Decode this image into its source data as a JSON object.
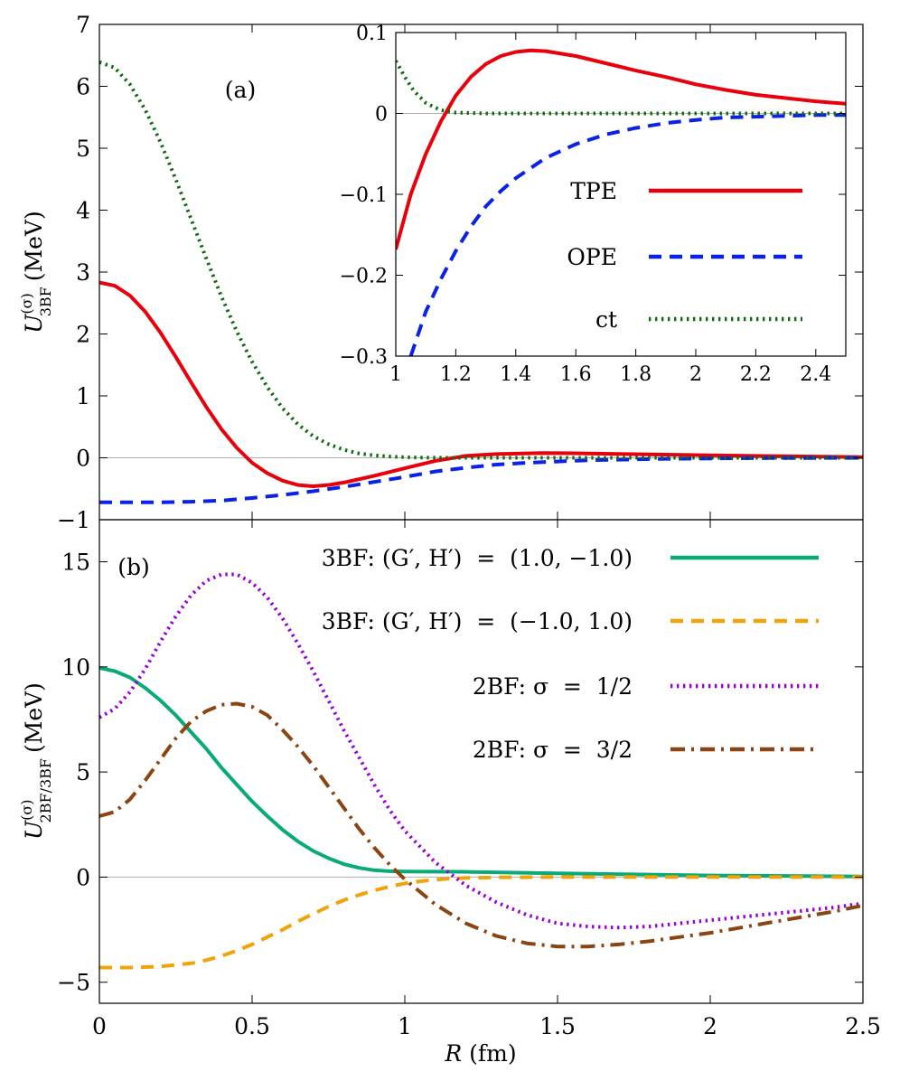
{
  "chart_data": [
    {
      "id": "panel-a",
      "type": "line",
      "panel_label": "(a)",
      "ylabel_main": "U",
      "ylabel_sup": "(σ)",
      "ylabel_sub": "3BF",
      "ylabel_unit": "(MeV)",
      "xlim": [
        0,
        2.5
      ],
      "ylim": [
        -1,
        7
      ],
      "yticks": [
        -1,
        0,
        1,
        2,
        3,
        4,
        5,
        6,
        7
      ],
      "ytick_labels": [
        "−1",
        "0",
        "1",
        "2",
        "3",
        "4",
        "5",
        "6",
        "7"
      ],
      "series": [
        {
          "name": "TPE",
          "color": "#e8000b",
          "style": "solid",
          "x": [
            0,
            0.05,
            0.1,
            0.15,
            0.2,
            0.25,
            0.3,
            0.35,
            0.4,
            0.45,
            0.5,
            0.55,
            0.6,
            0.65,
            0.7,
            0.75,
            0.8,
            0.9,
            1.0,
            1.1,
            1.2,
            1.3,
            1.45,
            1.6,
            1.8,
            2.0,
            2.2,
            2.5
          ],
          "y": [
            2.83,
            2.78,
            2.62,
            2.36,
            2.02,
            1.63,
            1.22,
            0.82,
            0.46,
            0.16,
            -0.08,
            -0.25,
            -0.37,
            -0.44,
            -0.46,
            -0.44,
            -0.4,
            -0.29,
            -0.17,
            -0.05,
            0.03,
            0.06,
            0.077,
            0.07,
            0.055,
            0.04,
            0.028,
            0.012
          ]
        },
        {
          "name": "OPE",
          "color": "#0a22e8",
          "style": "dashed",
          "x": [
            0,
            0.1,
            0.2,
            0.3,
            0.4,
            0.5,
            0.6,
            0.7,
            0.8,
            0.9,
            1.0,
            1.1,
            1.2,
            1.3,
            1.4,
            1.5,
            1.6,
            1.8,
            2.0,
            2.2,
            2.5
          ],
          "y": [
            -0.72,
            -0.72,
            -0.72,
            -0.71,
            -0.69,
            -0.65,
            -0.6,
            -0.54,
            -0.47,
            -0.39,
            -0.31,
            -0.22,
            -0.16,
            -0.11,
            -0.08,
            -0.06,
            -0.04,
            -0.02,
            -0.01,
            -0.005,
            -0.002
          ]
        },
        {
          "name": "ct",
          "color": "#0f6b0f",
          "style": "dotted",
          "x": [
            0,
            0.05,
            0.1,
            0.15,
            0.2,
            0.25,
            0.3,
            0.35,
            0.4,
            0.45,
            0.5,
            0.55,
            0.6,
            0.65,
            0.7,
            0.75,
            0.8,
            0.85,
            0.9,
            0.95,
            1.0,
            1.05,
            1.1,
            1.15,
            1.2,
            1.5,
            2.0,
            2.5
          ],
          "y": [
            6.39,
            6.3,
            6.03,
            5.62,
            5.1,
            4.5,
            3.86,
            3.22,
            2.6,
            2.04,
            1.55,
            1.14,
            0.8,
            0.54,
            0.35,
            0.22,
            0.13,
            0.07,
            0.04,
            0.02,
            0.01,
            0.003,
            0.001,
            0,
            0,
            0,
            0,
            0
          ]
        }
      ]
    },
    {
      "id": "inset",
      "type": "line",
      "xlim": [
        1,
        2.5
      ],
      "ylim": [
        -0.3,
        0.1
      ],
      "xticks": [
        1,
        1.2,
        1.4,
        1.6,
        1.8,
        2,
        2.2,
        2.4
      ],
      "xtick_labels": [
        "1",
        "1.2",
        "1.4",
        "1.6",
        "1.8",
        "2",
        "2.2",
        "2.4"
      ],
      "yticks": [
        -0.3,
        -0.2,
        -0.1,
        0,
        0.1
      ],
      "ytick_labels": [
        "−0.3",
        "−0.2",
        "−0.1",
        "0",
        "0.1"
      ],
      "legend": [
        {
          "label": "TPE",
          "color": "#e8000b",
          "style": "solid"
        },
        {
          "label": "OPE",
          "color": "#0a22e8",
          "style": "dashed"
        },
        {
          "label": "ct",
          "color": "#0f6b0f",
          "style": "dotted"
        }
      ],
      "series": [
        {
          "name": "TPE",
          "color": "#e8000b",
          "style": "solid",
          "x": [
            1.0,
            1.05,
            1.1,
            1.15,
            1.2,
            1.25,
            1.3,
            1.35,
            1.4,
            1.45,
            1.5,
            1.6,
            1.7,
            1.8,
            1.9,
            2.0,
            2.1,
            2.2,
            2.3,
            2.4,
            2.5
          ],
          "y": [
            -0.168,
            -0.1,
            -0.05,
            -0.01,
            0.022,
            0.045,
            0.061,
            0.071,
            0.076,
            0.078,
            0.077,
            0.071,
            0.062,
            0.053,
            0.045,
            0.036,
            0.029,
            0.023,
            0.019,
            0.015,
            0.012
          ]
        },
        {
          "name": "OPE",
          "color": "#0a22e8",
          "style": "dashed",
          "x": [
            1.05,
            1.1,
            1.15,
            1.2,
            1.25,
            1.3,
            1.35,
            1.4,
            1.5,
            1.6,
            1.7,
            1.8,
            1.9,
            2.0,
            2.1,
            2.2,
            2.3,
            2.4,
            2.5
          ],
          "y": [
            -0.3,
            -0.245,
            -0.205,
            -0.17,
            -0.14,
            -0.115,
            -0.096,
            -0.08,
            -0.055,
            -0.038,
            -0.026,
            -0.018,
            -0.012,
            -0.008,
            -0.005,
            -0.004,
            -0.003,
            -0.002,
            -0.002
          ]
        },
        {
          "name": "ct",
          "color": "#0f6b0f",
          "style": "dotted",
          "x": [
            1.0,
            1.03,
            1.06,
            1.1,
            1.15,
            1.2,
            1.3,
            1.5,
            2.0,
            2.5
          ],
          "y": [
            0.065,
            0.045,
            0.028,
            0.013,
            0.004,
            0.001,
            0,
            0,
            0,
            0
          ]
        }
      ]
    },
    {
      "id": "panel-b",
      "type": "line",
      "panel_label": "(b)",
      "xlabel_var": "R",
      "xlabel_unit": "(fm)",
      "ylabel_main": "U",
      "ylabel_sup": "(σ)",
      "ylabel_sub": "2BF/3BF",
      "ylabel_unit": "(MeV)",
      "xlim": [
        0,
        2.5
      ],
      "ylim": [
        -6,
        17
      ],
      "xticks": [
        0,
        0.5,
        1,
        1.5,
        2,
        2.5
      ],
      "xtick_labels": [
        "0",
        "0.5",
        "1",
        "1.5",
        "2",
        "2.5"
      ],
      "yticks": [
        -5,
        0,
        5,
        10,
        15
      ],
      "ytick_labels": [
        "−5",
        "0",
        "5",
        "10",
        "15"
      ],
      "legend": [
        {
          "label": "3BF: (G′, H′)  =  (1.0, −1.0)",
          "color": "#0aaa78",
          "style": "solid"
        },
        {
          "label": "3BF: (G′, H′)  =  (−1.0, 1.0)",
          "color": "#f0a30a",
          "style": "dashed"
        },
        {
          "label": "2BF: σ  =  1/2",
          "color": "#9a00d6",
          "style": "dotted"
        },
        {
          "label": "2BF: σ  =  3/2",
          "color": "#8b4513",
          "style": "dashdot"
        }
      ],
      "series": [
        {
          "name": "3BF: (G′,H′) = (1.0,−1.0)",
          "color": "#0aaa78",
          "style": "solid",
          "x": [
            0,
            0.05,
            0.1,
            0.15,
            0.2,
            0.25,
            0.3,
            0.35,
            0.4,
            0.45,
            0.5,
            0.55,
            0.6,
            0.65,
            0.7,
            0.75,
            0.8,
            0.85,
            0.9,
            0.95,
            1.0,
            1.2,
            1.5,
            2.0,
            2.5
          ],
          "y": [
            9.95,
            9.8,
            9.5,
            9.0,
            8.4,
            7.7,
            6.9,
            6.1,
            5.2,
            4.4,
            3.6,
            2.9,
            2.25,
            1.7,
            1.25,
            0.9,
            0.62,
            0.44,
            0.33,
            0.28,
            0.27,
            0.25,
            0.18,
            0.08,
            0.03
          ]
        },
        {
          "name": "3BF: (G′,H′) = (−1.0,1.0)",
          "color": "#f0a30a",
          "style": "dashed",
          "x": [
            0,
            0.1,
            0.2,
            0.3,
            0.35,
            0.4,
            0.45,
            0.5,
            0.55,
            0.6,
            0.65,
            0.7,
            0.75,
            0.8,
            0.85,
            0.9,
            0.95,
            1.0,
            1.05,
            1.1,
            1.15,
            1.2,
            1.3,
            1.5,
            2.0,
            2.5
          ],
          "y": [
            -4.3,
            -4.3,
            -4.25,
            -4.1,
            -3.95,
            -3.75,
            -3.5,
            -3.2,
            -2.85,
            -2.5,
            -2.1,
            -1.75,
            -1.4,
            -1.1,
            -0.85,
            -0.63,
            -0.45,
            -0.3,
            -0.2,
            -0.12,
            -0.07,
            -0.04,
            -0.01,
            0,
            0,
            0
          ]
        },
        {
          "name": "2BF: σ = 1/2",
          "color": "#9a00d6",
          "style": "dotted",
          "x": [
            0,
            0.05,
            0.1,
            0.15,
            0.2,
            0.25,
            0.3,
            0.35,
            0.4,
            0.45,
            0.5,
            0.55,
            0.6,
            0.65,
            0.7,
            0.75,
            0.8,
            0.85,
            0.9,
            0.95,
            1.0,
            1.1,
            1.2,
            1.3,
            1.4,
            1.5,
            1.6,
            1.7,
            1.8,
            1.9,
            2.0,
            2.1,
            2.2,
            2.3,
            2.4,
            2.5
          ],
          "y": [
            7.6,
            8.0,
            8.8,
            9.9,
            11.2,
            12.4,
            13.4,
            14.1,
            14.4,
            14.4,
            14.0,
            13.3,
            12.3,
            11.1,
            9.8,
            8.4,
            7.0,
            5.7,
            4.4,
            3.2,
            2.2,
            0.7,
            -0.4,
            -1.2,
            -1.8,
            -2.2,
            -2.35,
            -2.4,
            -2.35,
            -2.2,
            -2.05,
            -1.9,
            -1.75,
            -1.6,
            -1.45,
            -1.25
          ]
        },
        {
          "name": "2BF: σ = 3/2",
          "color": "#8b4513",
          "style": "dashdot",
          "x": [
            0,
            0.05,
            0.1,
            0.15,
            0.2,
            0.25,
            0.3,
            0.35,
            0.4,
            0.45,
            0.5,
            0.55,
            0.6,
            0.65,
            0.7,
            0.75,
            0.8,
            0.85,
            0.9,
            0.95,
            1.0,
            1.1,
            1.2,
            1.3,
            1.4,
            1.5,
            1.6,
            1.7,
            1.8,
            1.9,
            2.0,
            2.1,
            2.2,
            2.3,
            2.4,
            2.5
          ],
          "y": [
            2.9,
            3.1,
            3.7,
            4.6,
            5.6,
            6.6,
            7.4,
            7.9,
            8.2,
            8.25,
            8.1,
            7.7,
            7.0,
            6.2,
            5.3,
            4.3,
            3.3,
            2.3,
            1.4,
            0.6,
            -0.1,
            -1.3,
            -2.2,
            -2.8,
            -3.15,
            -3.3,
            -3.3,
            -3.2,
            -3.05,
            -2.85,
            -2.65,
            -2.4,
            -2.15,
            -1.9,
            -1.65,
            -1.35
          ]
        }
      ]
    }
  ]
}
